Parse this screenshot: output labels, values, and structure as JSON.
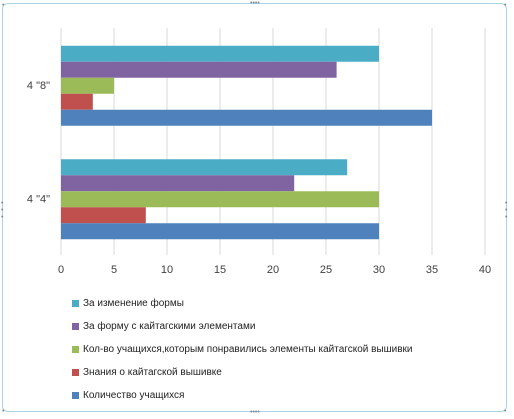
{
  "chart_data": {
    "type": "bar",
    "orientation": "horizontal",
    "categories": [
      "4 \"8\"",
      "4 \"4\""
    ],
    "series": [
      {
        "name": "За изменение формы",
        "color": "#4bacc6",
        "values": [
          30,
          27
        ]
      },
      {
        "name": "За форму  с кайтагскими элементами",
        "color": "#8064a2",
        "values": [
          26,
          22
        ]
      },
      {
        "name": "Кол-во учащихся,которым  понравились элементы  кайтагской вышивки",
        "color": "#9bbb59",
        "values": [
          5,
          30
        ]
      },
      {
        "name": "Знания о кайтагской вышивке",
        "color": "#c0504d",
        "values": [
          3,
          8
        ]
      },
      {
        "name": "Количество учащихся",
        "color": "#4f81bd",
        "values": [
          35,
          30
        ]
      }
    ],
    "xlim": [
      0,
      40
    ],
    "xticks": [
      0,
      5,
      10,
      15,
      20,
      25,
      30,
      35,
      40
    ],
    "grid": true,
    "legend_position": "bottom"
  }
}
